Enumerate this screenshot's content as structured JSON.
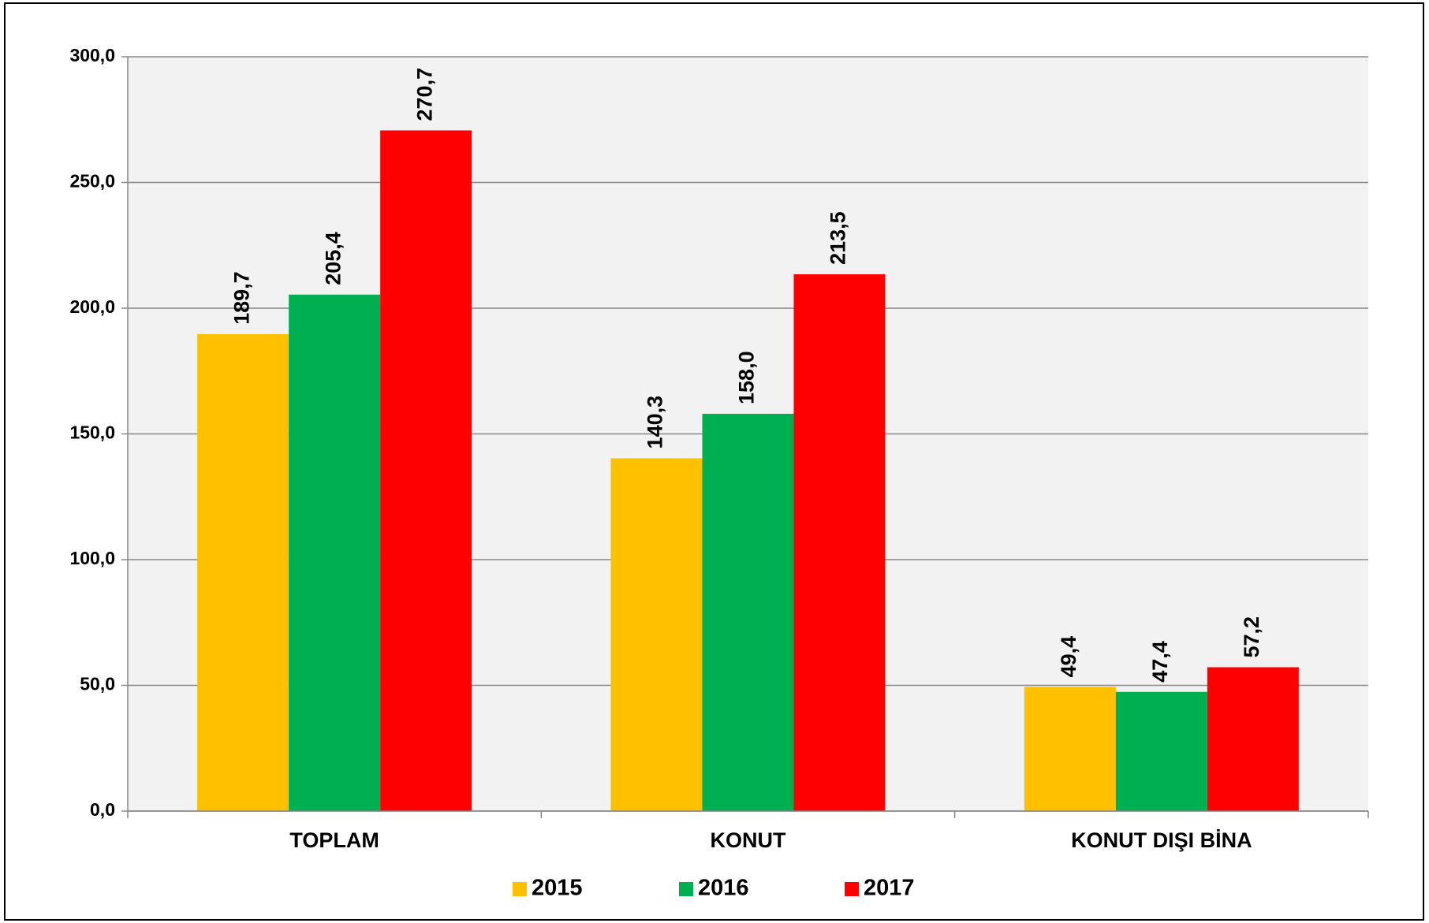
{
  "chart_data": {
    "type": "bar",
    "categories": [
      "TOPLAM",
      "KONUT",
      "KONUT DIŞI BİNA"
    ],
    "series": [
      {
        "name": "2015",
        "color": "#ffc000",
        "values": [
          189.7,
          140.3,
          49.4
        ],
        "value_labels": [
          "189,7",
          "140,3",
          "49,4"
        ]
      },
      {
        "name": "2016",
        "color": "#00b050",
        "values": [
          205.4,
          158.0,
          47.4
        ],
        "value_labels": [
          "205,4",
          "158,0",
          "47,4"
        ]
      },
      {
        "name": "2017",
        "color": "#ff0000",
        "values": [
          270.7,
          213.5,
          57.2
        ],
        "value_labels": [
          "270,7",
          "213,5",
          "57,2"
        ]
      }
    ],
    "ylim": [
      0,
      300
    ],
    "yticks": [
      {
        "value": 0,
        "label": "0,0"
      },
      {
        "value": 50,
        "label": "50,0"
      },
      {
        "value": 100,
        "label": "100,0"
      },
      {
        "value": 150,
        "label": "150,0"
      },
      {
        "value": 200,
        "label": "200,0"
      },
      {
        "value": 250,
        "label": "250,0"
      },
      {
        "value": 300,
        "label": "300,0"
      }
    ],
    "grid": true,
    "legend": "bottom"
  }
}
